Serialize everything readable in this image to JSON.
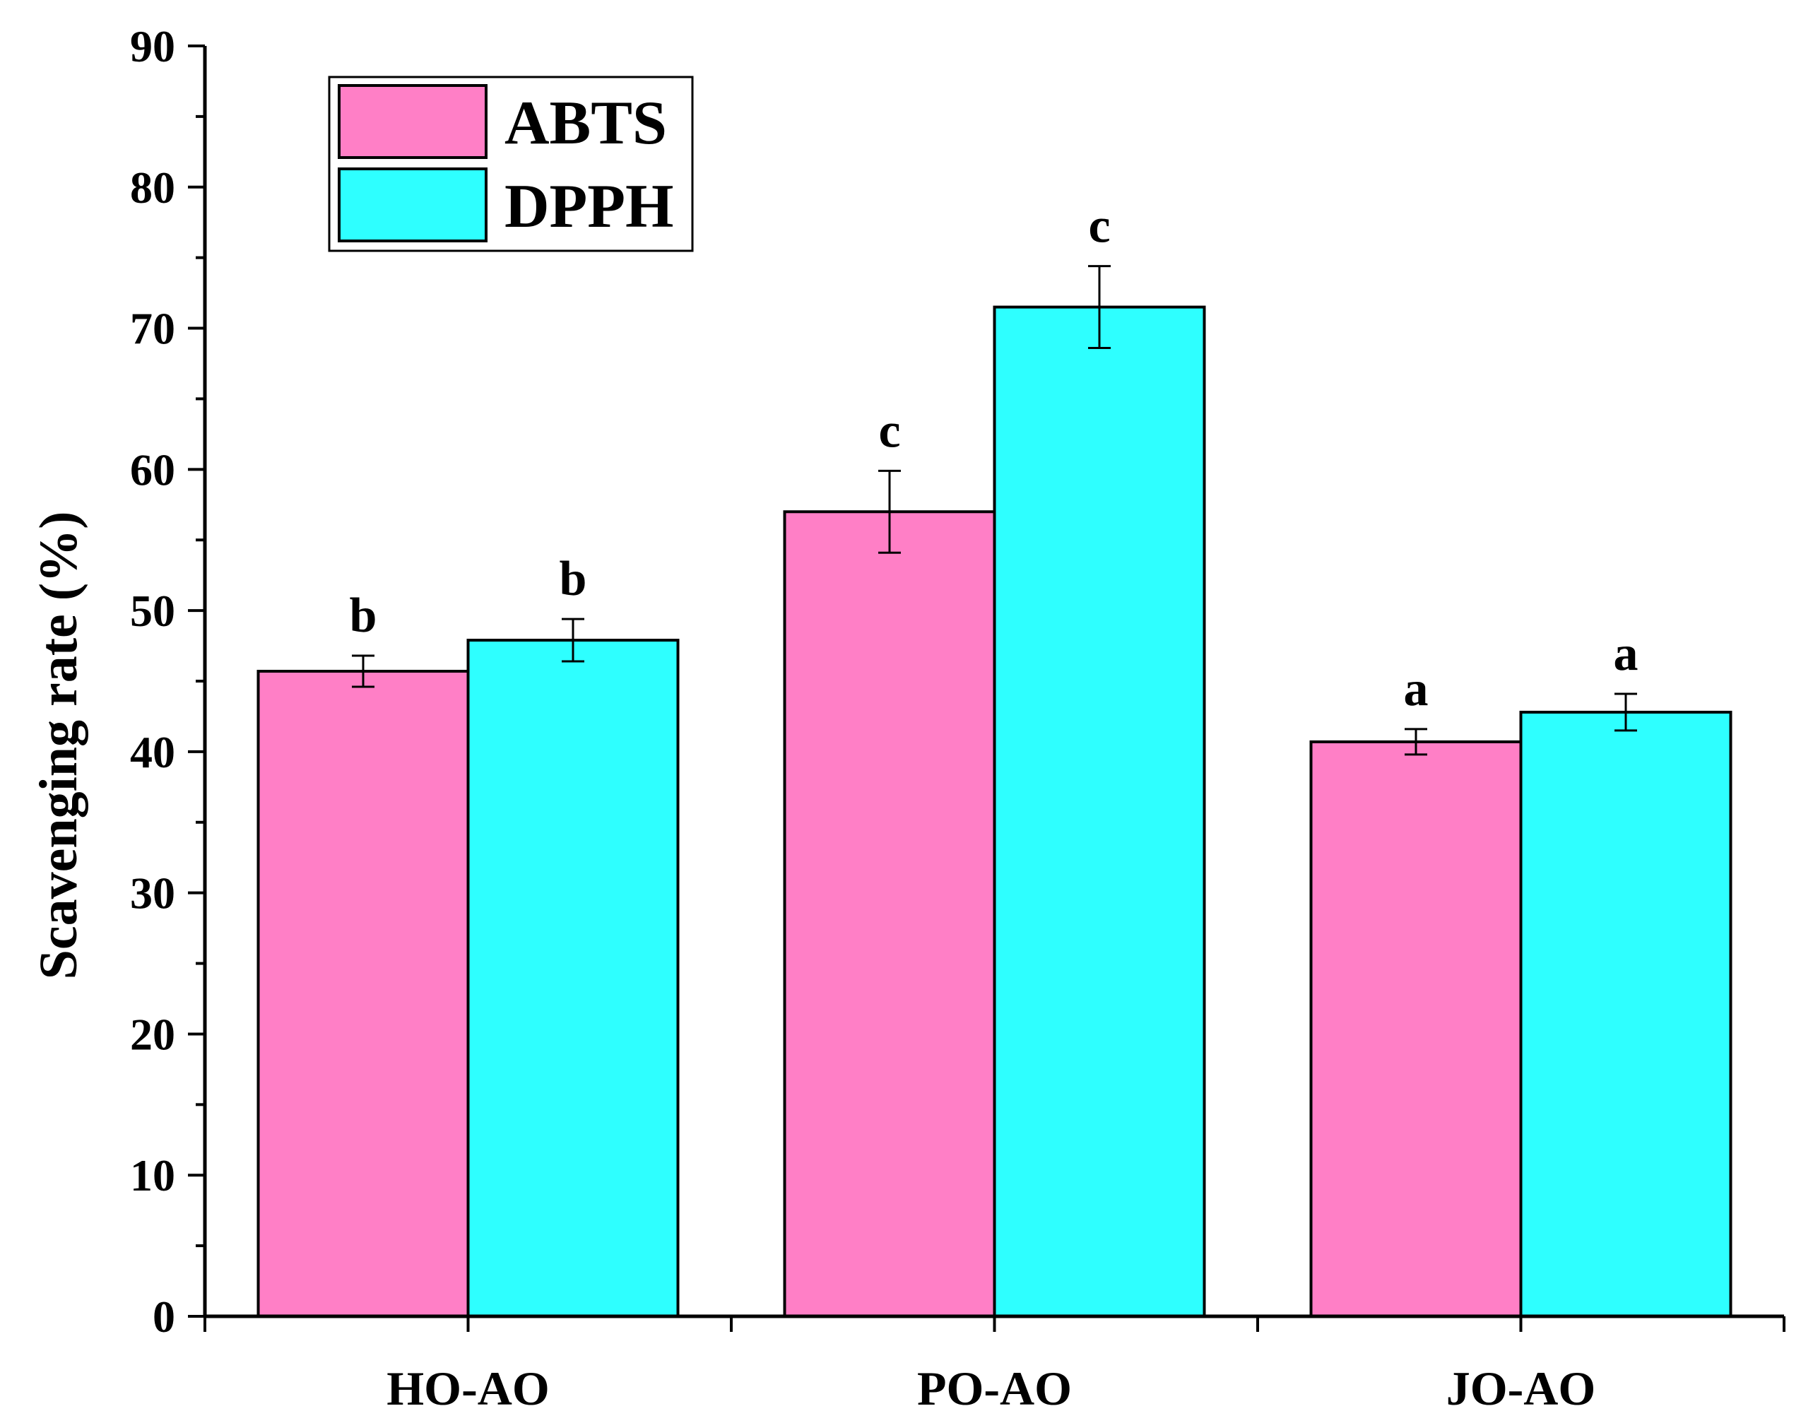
{
  "chart_data": {
    "type": "bar",
    "title": "",
    "xlabel": "",
    "ylabel": "Scavenging rate (%)",
    "ylim": [
      0,
      90
    ],
    "yticks": [
      0,
      10,
      20,
      30,
      40,
      50,
      60,
      70,
      80,
      90
    ],
    "categories": [
      "HO-AO",
      "PO-AO",
      "JO-AO"
    ],
    "series": [
      {
        "name": "ABTS",
        "color": "#FF7FC6",
        "values": [
          45.7,
          57.0,
          40.7
        ],
        "errors": [
          1.1,
          2.9,
          0.9
        ],
        "significance": [
          "b",
          "c",
          "a"
        ]
      },
      {
        "name": "DPPH",
        "color": "#2EFFFF",
        "values": [
          47.9,
          71.5,
          42.8
        ],
        "errors": [
          1.5,
          2.9,
          1.3
        ],
        "significance": [
          "b",
          "c",
          "a"
        ]
      }
    ],
    "legend": {
      "position": "top-left",
      "entries": [
        "ABTS",
        "DPPH"
      ]
    },
    "grid": false
  }
}
